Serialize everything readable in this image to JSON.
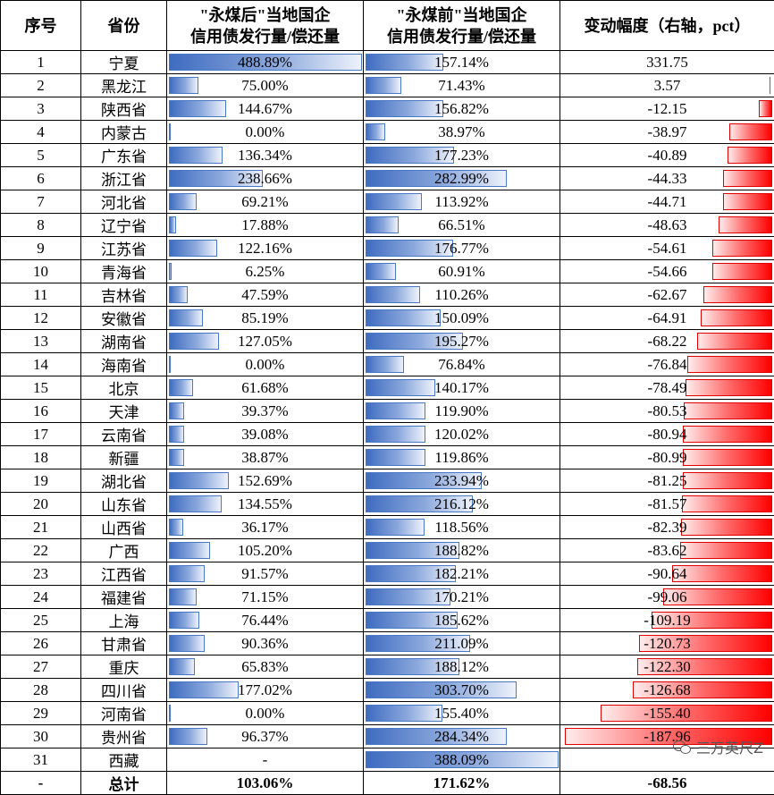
{
  "headers": {
    "col1": "序号",
    "col2": "省份",
    "col3_line1": "\"永煤后\"当地国企",
    "col3_line2": "信用债发行量/偿还量",
    "col4_line1": "\"永煤前\"当地国企",
    "col4_line2": "信用债发行量/偿还量",
    "col5": "变动幅度（右轴，pct）"
  },
  "rows": [
    {
      "no": "1",
      "province": "宁夏",
      "after": "488.89%",
      "before": "157.14%",
      "change": "331.75",
      "after_v": 488.89,
      "before_v": 157.14,
      "change_v": 331.75
    },
    {
      "no": "2",
      "province": "黑龙江",
      "after": "75.00%",
      "before": "71.43%",
      "change": "3.57",
      "after_v": 75.0,
      "before_v": 71.43,
      "change_v": 3.57
    },
    {
      "no": "3",
      "province": "陕西省",
      "after": "144.67%",
      "before": "156.82%",
      "change": "-12.15",
      "after_v": 144.67,
      "before_v": 156.82,
      "change_v": -12.15
    },
    {
      "no": "4",
      "province": "内蒙古",
      "after": "0.00%",
      "before": "38.97%",
      "change": "-38.97",
      "after_v": 0,
      "before_v": 38.97,
      "change_v": -38.97
    },
    {
      "no": "5",
      "province": "广东省",
      "after": "136.34%",
      "before": "177.23%",
      "change": "-40.89",
      "after_v": 136.34,
      "before_v": 177.23,
      "change_v": -40.89
    },
    {
      "no": "6",
      "province": "浙江省",
      "after": "238.66%",
      "before": "282.99%",
      "change": "-44.33",
      "after_v": 238.66,
      "before_v": 282.99,
      "change_v": -44.33
    },
    {
      "no": "7",
      "province": "河北省",
      "after": "69.21%",
      "before": "113.92%",
      "change": "-44.71",
      "after_v": 69.21,
      "before_v": 113.92,
      "change_v": -44.71
    },
    {
      "no": "8",
      "province": "辽宁省",
      "after": "17.88%",
      "before": "66.51%",
      "change": "-48.63",
      "after_v": 17.88,
      "before_v": 66.51,
      "change_v": -48.63
    },
    {
      "no": "9",
      "province": "江苏省",
      "after": "122.16%",
      "before": "176.77%",
      "change": "-54.61",
      "after_v": 122.16,
      "before_v": 176.77,
      "change_v": -54.61
    },
    {
      "no": "10",
      "province": "青海省",
      "after": "6.25%",
      "before": "60.91%",
      "change": "-54.66",
      "after_v": 6.25,
      "before_v": 60.91,
      "change_v": -54.66
    },
    {
      "no": "11",
      "province": "吉林省",
      "after": "47.59%",
      "before": "110.26%",
      "change": "-62.67",
      "after_v": 47.59,
      "before_v": 110.26,
      "change_v": -62.67
    },
    {
      "no": "12",
      "province": "安徽省",
      "after": "85.19%",
      "before": "150.09%",
      "change": "-64.91",
      "after_v": 85.19,
      "before_v": 150.09,
      "change_v": -64.91
    },
    {
      "no": "13",
      "province": "湖南省",
      "after": "127.05%",
      "before": "195.27%",
      "change": "-68.22",
      "after_v": 127.05,
      "before_v": 195.27,
      "change_v": -68.22
    },
    {
      "no": "14",
      "province": "海南省",
      "after": "0.00%",
      "before": "76.84%",
      "change": "-76.84",
      "after_v": 0,
      "before_v": 76.84,
      "change_v": -76.84
    },
    {
      "no": "15",
      "province": "北京",
      "after": "61.68%",
      "before": "140.17%",
      "change": "-78.49",
      "after_v": 61.68,
      "before_v": 140.17,
      "change_v": -78.49
    },
    {
      "no": "16",
      "province": "天津",
      "after": "39.37%",
      "before": "119.90%",
      "change": "-80.53",
      "after_v": 39.37,
      "before_v": 119.9,
      "change_v": -80.53
    },
    {
      "no": "17",
      "province": "云南省",
      "after": "39.08%",
      "before": "120.02%",
      "change": "-80.94",
      "after_v": 39.08,
      "before_v": 120.02,
      "change_v": -80.94
    },
    {
      "no": "18",
      "province": "新疆",
      "after": "38.87%",
      "before": "119.86%",
      "change": "-80.99",
      "after_v": 38.87,
      "before_v": 119.86,
      "change_v": -80.99
    },
    {
      "no": "19",
      "province": "湖北省",
      "after": "152.69%",
      "before": "233.94%",
      "change": "-81.25",
      "after_v": 152.69,
      "before_v": 233.94,
      "change_v": -81.25
    },
    {
      "no": "20",
      "province": "山东省",
      "after": "134.55%",
      "before": "216.12%",
      "change": "-81.57",
      "after_v": 134.55,
      "before_v": 216.12,
      "change_v": -81.57
    },
    {
      "no": "21",
      "province": "山西省",
      "after": "36.17%",
      "before": "118.56%",
      "change": "-82.39",
      "after_v": 36.17,
      "before_v": 118.56,
      "change_v": -82.39
    },
    {
      "no": "22",
      "province": "广西",
      "after": "105.20%",
      "before": "188.82%",
      "change": "-83.62",
      "after_v": 105.2,
      "before_v": 188.82,
      "change_v": -83.62
    },
    {
      "no": "23",
      "province": "江西省",
      "after": "91.57%",
      "before": "182.21%",
      "change": "-90.64",
      "after_v": 91.57,
      "before_v": 182.21,
      "change_v": -90.64
    },
    {
      "no": "24",
      "province": "福建省",
      "after": "71.15%",
      "before": "170.21%",
      "change": "-99.06",
      "after_v": 71.15,
      "before_v": 170.21,
      "change_v": -99.06
    },
    {
      "no": "25",
      "province": "上海",
      "after": "76.44%",
      "before": "185.62%",
      "change": "-109.19",
      "after_v": 76.44,
      "before_v": 185.62,
      "change_v": -109.19
    },
    {
      "no": "26",
      "province": "甘肃省",
      "after": "90.36%",
      "before": "211.09%",
      "change": "-120.73",
      "after_v": 90.36,
      "before_v": 211.09,
      "change_v": -120.73
    },
    {
      "no": "27",
      "province": "重庆",
      "after": "65.83%",
      "before": "188.12%",
      "change": "-122.30",
      "after_v": 65.83,
      "before_v": 188.12,
      "change_v": -122.3
    },
    {
      "no": "28",
      "province": "四川省",
      "after": "177.02%",
      "before": "303.70%",
      "change": "-126.68",
      "after_v": 177.02,
      "before_v": 303.7,
      "change_v": -126.68
    },
    {
      "no": "29",
      "province": "河南省",
      "after": "0.00%",
      "before": "155.40%",
      "change": "-155.40",
      "after_v": 0,
      "before_v": 155.4,
      "change_v": -155.4
    },
    {
      "no": "30",
      "province": "贵州省",
      "after": "96.37%",
      "before": "284.34%",
      "change": "-187.96",
      "after_v": 96.37,
      "before_v": 284.34,
      "change_v": -187.96
    },
    {
      "no": "31",
      "province": "西藏",
      "after": "-",
      "before": "388.09%",
      "change": "",
      "after_v": null,
      "before_v": 388.09,
      "change_v": null
    }
  ],
  "total": {
    "no": "-",
    "label": "总计",
    "after": "103.06%",
    "before": "171.62%",
    "change": "-68.56"
  },
  "watermark": "三万英尺Z",
  "colors": {
    "blue_bar": "#3f6cc0",
    "red_bar": "#ff0000"
  }
}
